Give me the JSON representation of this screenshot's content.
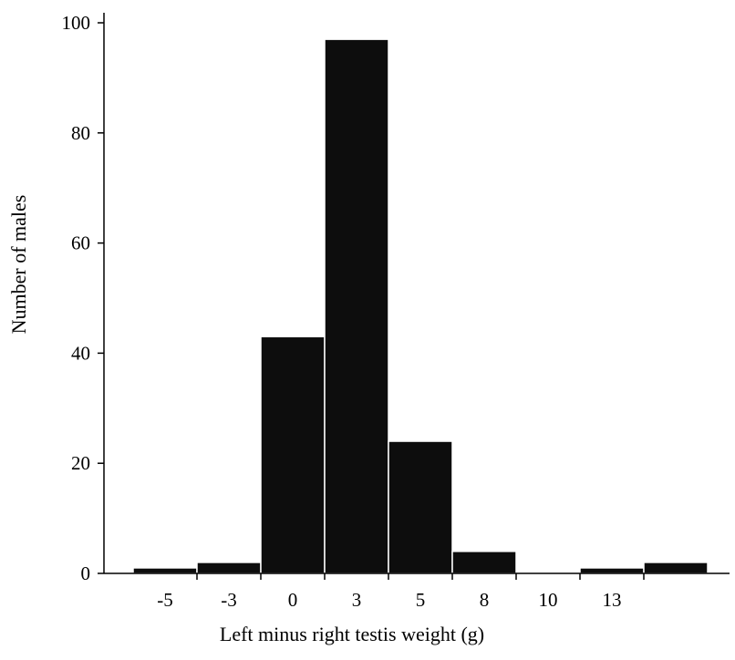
{
  "chart_data": {
    "type": "bar",
    "title": "",
    "xlabel": "Left minus right testis weight (g)",
    "ylabel": "Number of males",
    "ylim": [
      0,
      100
    ],
    "yticks": [
      0,
      20,
      40,
      60,
      80,
      100
    ],
    "xticks": [
      -5,
      -3,
      0,
      3,
      5,
      8,
      10,
      13
    ],
    "bins": [
      {
        "from": -6,
        "to": -4,
        "count": 1
      },
      {
        "from": -4,
        "to": -2,
        "count": 2
      },
      {
        "from": -2,
        "to": 0,
        "count": 43
      },
      {
        "from": 0,
        "to": 2,
        "count": 97
      },
      {
        "from": 2,
        "to": 4,
        "count": 24
      },
      {
        "from": 4,
        "to": 6,
        "count": 4
      },
      {
        "from": 6,
        "to": 8,
        "count": 0
      },
      {
        "from": 8,
        "to": 10,
        "count": 1
      },
      {
        "from": 10,
        "to": 12,
        "count": 2
      }
    ],
    "bar_color": "#0d0d0d",
    "grid": false,
    "legend": "none"
  }
}
